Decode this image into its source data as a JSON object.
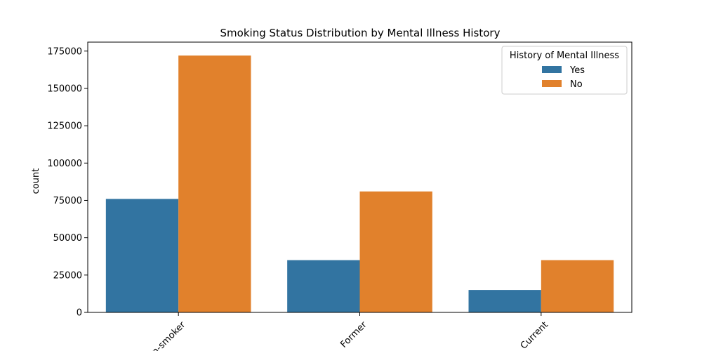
{
  "chart_data": {
    "type": "bar",
    "title": "Smoking Status Distribution by Mental Illness History",
    "xlabel": "",
    "ylabel": "count",
    "categories": [
      "Non-smoker",
      "Former",
      "Current"
    ],
    "series": [
      {
        "name": "Yes",
        "color": "#3274a1",
        "values": [
          76000,
          35000,
          15000
        ]
      },
      {
        "name": "No",
        "color": "#e1812c",
        "values": [
          172000,
          81000,
          35000
        ]
      }
    ],
    "ylim": [
      0,
      181000
    ],
    "yticks": [
      0,
      25000,
      50000,
      75000,
      100000,
      125000,
      150000,
      175000
    ],
    "ytick_labels": [
      "0",
      "25000",
      "50000",
      "75000",
      "100000",
      "125000",
      "150000",
      "175000"
    ],
    "xtick_rotation": 45,
    "grid": false,
    "legend": {
      "title": "History of Mental Illness",
      "placement": "top-right"
    }
  }
}
